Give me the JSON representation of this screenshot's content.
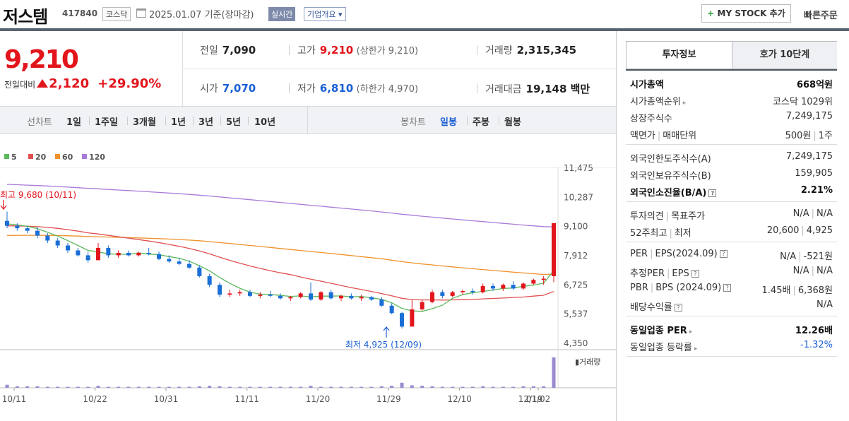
{
  "header": {
    "stock_name": "저스템",
    "stock_code": "417840",
    "market": "코스닥",
    "date": "2025.01.07 기준(장마감)",
    "realtime": "실시간",
    "company_overview": "기업개요 ▾",
    "my_stock": "MY STOCK 추가",
    "quick_order": "빠른주문"
  },
  "price": {
    "current": "9,210",
    "change_label": "전일대비",
    "change": "2,120",
    "change_pct": "+29.90%"
  },
  "quote": {
    "prev_label": "전일",
    "prev": "7,090",
    "high_label": "고가",
    "high": "9,210",
    "upper_limit": "(상한가 9,210)",
    "volume_label": "거래량",
    "volume": "2,315,345",
    "open_label": "시가",
    "open": "7,070",
    "low_label": "저가",
    "low": "6,810",
    "lower_limit": "(하한가 4,970)",
    "amount_label": "거래대금",
    "amount": "19,148 백만"
  },
  "tabs": {
    "line_header": "선차트",
    "line_items": [
      "1일",
      "1주일",
      "3개월",
      "1년",
      "3년",
      "5년",
      "10년"
    ],
    "candle_header": "봉차트",
    "candle_items": [
      "일봉",
      "주봉",
      "월봉"
    ]
  },
  "chart": {
    "legend": [
      "5",
      "20",
      "60",
      "120"
    ],
    "colors": {
      "ma5": "#5cb85c",
      "ma20": "#e05050",
      "ma60": "#f0922b",
      "ma120": "#a87bd8",
      "up": "#e3151c",
      "down": "#1a6fd6"
    },
    "y_ticks": [
      "11,475",
      "10,287",
      "9,100",
      "7,912",
      "6,725",
      "5,537",
      "4,350"
    ],
    "x_ticks": [
      "10/11",
      "10/22",
      "10/31",
      "11/11",
      "11/20",
      "11/29",
      "12/10",
      "12/19",
      "01/02"
    ],
    "high_label": "최고 9,680 (10/11)",
    "low_label": "최저 4,925 (12/09)",
    "volume_label": "거래량"
  },
  "chart_data": {
    "type": "candlestick",
    "ylim": [
      4350,
      11475
    ],
    "candles": [
      [
        9300,
        9680,
        9000,
        9100
      ],
      [
        9100,
        9200,
        8900,
        9000
      ],
      [
        9000,
        9100,
        8800,
        8900
      ],
      [
        8900,
        9050,
        8600,
        8700
      ],
      [
        8700,
        8800,
        8400,
        8500
      ],
      [
        8500,
        8600,
        8200,
        8300
      ],
      [
        8300,
        8400,
        8000,
        8100
      ],
      [
        8100,
        8200,
        7850,
        7900
      ],
      [
        7900,
        8050,
        7600,
        7700
      ],
      [
        7700,
        8400,
        7700,
        8200
      ],
      [
        8200,
        8300,
        7800,
        7900
      ],
      [
        7900,
        8100,
        7800,
        8000
      ],
      [
        8000,
        8100,
        7850,
        7900
      ],
      [
        7900,
        8050,
        7850,
        8000
      ],
      [
        8000,
        8200,
        7900,
        7950
      ],
      [
        7950,
        8050,
        7700,
        7750
      ],
      [
        7750,
        7900,
        7600,
        7650
      ],
      [
        7650,
        7800,
        7500,
        7550
      ],
      [
        7550,
        7700,
        7350,
        7400
      ],
      [
        7400,
        7500,
        7000,
        7050
      ],
      [
        7050,
        7150,
        6600,
        6700
      ],
      [
        6700,
        6800,
        6200,
        6300
      ],
      [
        6300,
        6500,
        6200,
        6350
      ],
      [
        6350,
        6500,
        6250,
        6400
      ],
      [
        6400,
        6500,
        6200,
        6250
      ],
      [
        6250,
        6400,
        6150,
        6300
      ],
      [
        6300,
        6450,
        6200,
        6250
      ],
      [
        6250,
        6350,
        6100,
        6150
      ],
      [
        6150,
        6250,
        6050,
        6200
      ],
      [
        6200,
        6400,
        6150,
        6350
      ],
      [
        6350,
        6800,
        6050,
        6100
      ],
      [
        6100,
        6450,
        6050,
        6400
      ],
      [
        6400,
        6500,
        6100,
        6150
      ],
      [
        6150,
        6300,
        6050,
        6250
      ],
      [
        6250,
        6350,
        6100,
        6150
      ],
      [
        6150,
        6300,
        6050,
        6200
      ],
      [
        6200,
        6250,
        6050,
        6100
      ],
      [
        6100,
        6200,
        5800,
        5850
      ],
      [
        5850,
        5950,
        5500,
        5550
      ],
      [
        5550,
        5600,
        4925,
        5000
      ],
      [
        5000,
        6100,
        5000,
        5700
      ],
      [
        5700,
        6100,
        5650,
        6000
      ],
      [
        6000,
        6500,
        5950,
        6400
      ],
      [
        6400,
        6500,
        6150,
        6250
      ],
      [
        6250,
        6450,
        6200,
        6400
      ],
      [
        6400,
        6500,
        6300,
        6450
      ],
      [
        6450,
        6550,
        6300,
        6400
      ],
      [
        6400,
        6750,
        6350,
        6650
      ],
      [
        6650,
        6750,
        6450,
        6550
      ],
      [
        6550,
        6750,
        6450,
        6700
      ],
      [
        6700,
        6850,
        6500,
        6550
      ],
      [
        6550,
        6800,
        6500,
        6750
      ],
      [
        6750,
        6950,
        6700,
        6900
      ],
      [
        6900,
        7050,
        6700,
        6950
      ],
      [
        7050,
        9210,
        6810,
        9210
      ]
    ],
    "volumes": [
      6,
      3,
      3,
      3,
      2,
      2,
      2,
      2,
      2,
      4,
      2,
      2,
      2,
      2,
      2,
      2,
      2,
      2,
      2,
      3,
      4,
      3,
      2,
      2,
      2,
      2,
      2,
      2,
      2,
      2,
      4,
      2,
      2,
      2,
      2,
      2,
      2,
      3,
      4,
      10,
      5,
      4,
      3,
      2,
      2,
      2,
      2,
      3,
      2,
      2,
      2,
      3,
      3,
      3,
      60
    ]
  },
  "invest": {
    "tab_a": "투자정보",
    "tab_b": "호가 10단계",
    "groups": [
      [
        {
          "k": "시가총액",
          "v": "668억원",
          "kb": true,
          "vb": true
        },
        {
          "k": "시가총액순위",
          "v": "코스닥 1029위",
          "arr": true
        },
        {
          "k": "상장주식수",
          "v": "7,249,175"
        },
        {
          "k": "액면가 | 매매단위",
          "v": "500원 | 1주"
        }
      ],
      [
        {
          "k": "외국인한도주식수(A)",
          "v": "7,249,175"
        },
        {
          "k": "외국인보유주식수(B)",
          "v": "159,905"
        },
        {
          "k": "외국인소진율(B/A)",
          "v": "2.21%",
          "kb": true,
          "vb": true,
          "q": true
        }
      ],
      [
        {
          "k": "투자의견 | 목표주가",
          "v": "N/A | N/A"
        },
        {
          "k": "52주최고 | 최저",
          "v": "20,600 | 4,925"
        }
      ],
      [
        {
          "k": "PER | EPS(2024.09)",
          "v": "N/A | -521원",
          "q": true
        },
        {
          "k": "추정PER | EPS",
          "v": "N/A | N/A",
          "q": true
        },
        {
          "k": "PBR | BPS (2024.09)",
          "v": "1.45배 | 6,368원",
          "q": true
        },
        {
          "k": "배당수익률",
          "v": "N/A",
          "q": true
        }
      ],
      [
        {
          "k": "동일업종 PER",
          "v": "12.26배",
          "kb": true,
          "vb": true,
          "arr": true
        },
        {
          "k": "동일업종 등락률",
          "v": "-1.32%",
          "arr": true,
          "blue": true
        }
      ]
    ]
  }
}
